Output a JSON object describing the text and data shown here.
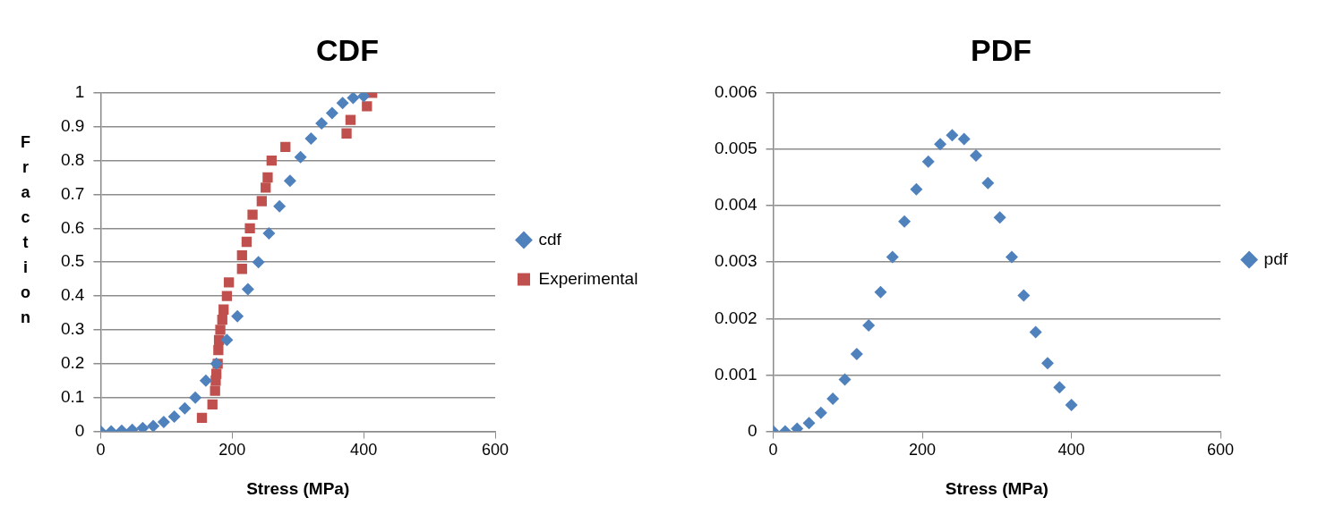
{
  "chart_data": [
    {
      "type": "scatter",
      "title": "CDF",
      "xlabel": "Stress (MPa)",
      "ylabel": "Fraction",
      "xlim": [
        0,
        600
      ],
      "xticks": [
        0,
        200,
        400,
        600
      ],
      "ylim": [
        0,
        1
      ],
      "yticks": [
        0,
        0.1,
        0.2,
        0.3,
        0.4,
        0.5,
        0.6,
        0.7,
        0.8,
        0.9,
        1
      ],
      "grid": "y",
      "legend": "right",
      "series": [
        {
          "name": "cdf",
          "color": "#4f81bd",
          "marker": "diamond",
          "x": [
            0,
            16,
            32,
            48,
            64,
            80,
            96,
            112,
            128,
            144,
            160,
            176,
            192,
            208,
            224,
            240,
            256,
            272,
            288,
            304,
            320,
            336,
            352,
            368,
            384,
            400
          ],
          "values": [
            0,
            0,
            0.002,
            0.005,
            0.01,
            0.016,
            0.028,
            0.044,
            0.068,
            0.1,
            0.15,
            0.2,
            0.27,
            0.34,
            0.42,
            0.5,
            0.585,
            0.665,
            0.74,
            0.81,
            0.865,
            0.91,
            0.94,
            0.97,
            0.985,
            0.99
          ]
        },
        {
          "name": "Experimental",
          "color": "#c0504d",
          "marker": "square",
          "x": [
            154,
            170,
            174,
            175,
            176,
            178,
            179,
            180,
            182,
            185,
            187,
            192,
            195,
            215,
            215,
            222,
            227,
            231,
            245,
            251,
            254,
            260,
            281,
            374,
            380,
            405,
            413
          ],
          "values": [
            0.04,
            0.08,
            0.12,
            0.15,
            0.17,
            0.2,
            0.24,
            0.27,
            0.3,
            0.33,
            0.36,
            0.4,
            0.44,
            0.48,
            0.52,
            0.56,
            0.6,
            0.64,
            0.68,
            0.72,
            0.75,
            0.8,
            0.84,
            0.88,
            0.92,
            0.96,
            1
          ]
        }
      ]
    },
    {
      "type": "scatter",
      "title": "PDF",
      "xlabel": "Stress (MPa)",
      "xlim": [
        0,
        600
      ],
      "xticks": [
        0,
        200,
        400,
        600
      ],
      "ylim": [
        0,
        0.006
      ],
      "yticks": [
        0,
        0.001,
        0.002,
        0.003,
        0.004,
        0.005,
        0.006
      ],
      "grid": "y",
      "legend": "right",
      "series": [
        {
          "name": "pdf",
          "color": "#4f81bd",
          "marker": "diamond",
          "x": [
            0,
            16,
            32,
            48,
            64,
            80,
            96,
            112,
            128,
            144,
            160,
            176,
            192,
            208,
            224,
            240,
            256,
            272,
            288,
            304,
            320,
            336,
            352,
            368,
            384,
            400
          ],
          "values": [
            0,
            0,
            5e-05,
            0.00015,
            0.00033,
            0.00058,
            0.00092,
            0.00137,
            0.00188,
            0.00247,
            0.00309,
            0.00372,
            0.00429,
            0.00478,
            0.00509,
            0.00525,
            0.00518,
            0.00489,
            0.0044,
            0.00379,
            0.00309,
            0.00241,
            0.00176,
            0.00121,
            0.00078,
            0.00047
          ]
        }
      ]
    }
  ]
}
